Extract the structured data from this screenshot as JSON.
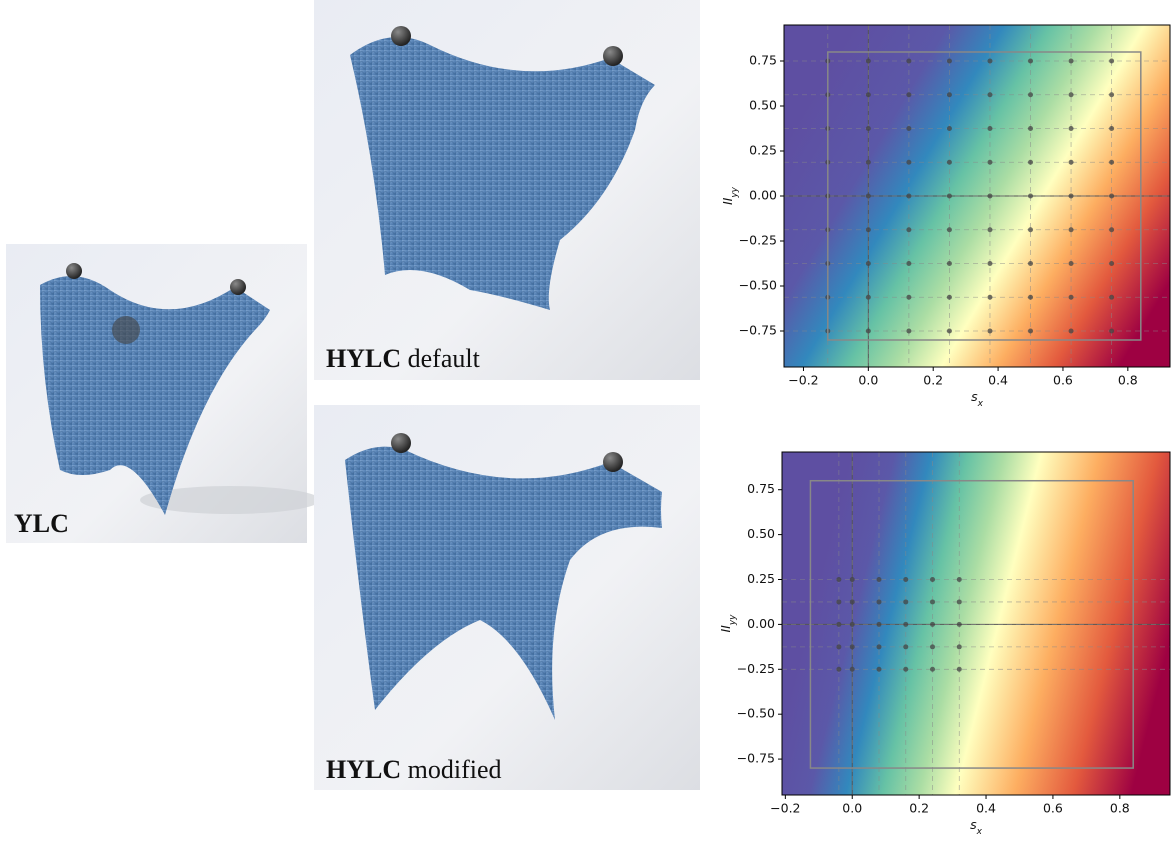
{
  "panels": [
    {
      "bold": "YLC",
      "rest": ""
    },
    {
      "bold": "HYLC",
      "rest": " default"
    },
    {
      "bold": "HYLC",
      "rest": " modified"
    }
  ],
  "chart_data": [
    {
      "type": "heatmap",
      "xlabel": "s",
      "xlabel_sub": "x",
      "ylabel": "II",
      "ylabel_sub": "yy",
      "xlim": [
        -0.26,
        0.93
      ],
      "ylim": [
        -0.95,
        0.95
      ],
      "xticks": [
        {
          "value": -0.2,
          "label": "−0.2"
        },
        {
          "value": 0,
          "label": "0.0"
        },
        {
          "value": 0.2,
          "label": "0.2"
        },
        {
          "value": 0.4,
          "label": "0.4"
        },
        {
          "value": 0.6,
          "label": "0.6"
        },
        {
          "value": 0.8,
          "label": "0.8"
        }
      ],
      "yticks": [
        {
          "value": -0.75,
          "label": "−0.75"
        },
        {
          "value": -0.5,
          "label": "−0.50"
        },
        {
          "value": -0.25,
          "label": "−0.25"
        },
        {
          "value": 0,
          "label": "0.00"
        },
        {
          "value": 0.25,
          "label": "0.25"
        },
        {
          "value": 0.5,
          "label": "0.50"
        },
        {
          "value": 0.75,
          "label": "0.75"
        }
      ],
      "sample_x": [
        -0.125,
        0,
        0.125,
        0.25,
        0.375,
        0.5,
        0.625,
        0.75
      ],
      "sample_y": [
        -0.75,
        -0.5625,
        -0.375,
        -0.1875,
        0,
        0.1875,
        0.375,
        0.5625,
        0.75
      ],
      "box_x": [
        -0.125,
        0.84
      ],
      "box_y": [
        -0.8,
        0.8
      ]
    },
    {
      "type": "heatmap",
      "xlabel": "s",
      "xlabel_sub": "x",
      "ylabel": "II",
      "ylabel_sub": "yy",
      "xlim": [
        -0.21,
        0.95
      ],
      "ylim": [
        -0.95,
        0.96
      ],
      "xticks": [
        {
          "value": -0.2,
          "label": "−0.2"
        },
        {
          "value": 0,
          "label": "0.0"
        },
        {
          "value": 0.2,
          "label": "0.2"
        },
        {
          "value": 0.4,
          "label": "0.4"
        },
        {
          "value": 0.6,
          "label": "0.6"
        },
        {
          "value": 0.8,
          "label": "0.8"
        }
      ],
      "yticks": [
        {
          "value": -0.75,
          "label": "−0.75"
        },
        {
          "value": -0.5,
          "label": "−0.50"
        },
        {
          "value": -0.25,
          "label": "−0.25"
        },
        {
          "value": 0,
          "label": "0.00"
        },
        {
          "value": 0.25,
          "label": "0.25"
        },
        {
          "value": 0.5,
          "label": "0.50"
        },
        {
          "value": 0.75,
          "label": "0.75"
        }
      ],
      "sample_x": [
        -0.04,
        0,
        0.08,
        0.16,
        0.24,
        0.32
      ],
      "sample_y": [
        -0.25,
        -0.125,
        0,
        0.125,
        0.25
      ],
      "box_x": [
        -0.125,
        0.84
      ],
      "box_y": [
        -0.8,
        0.8
      ]
    }
  ]
}
